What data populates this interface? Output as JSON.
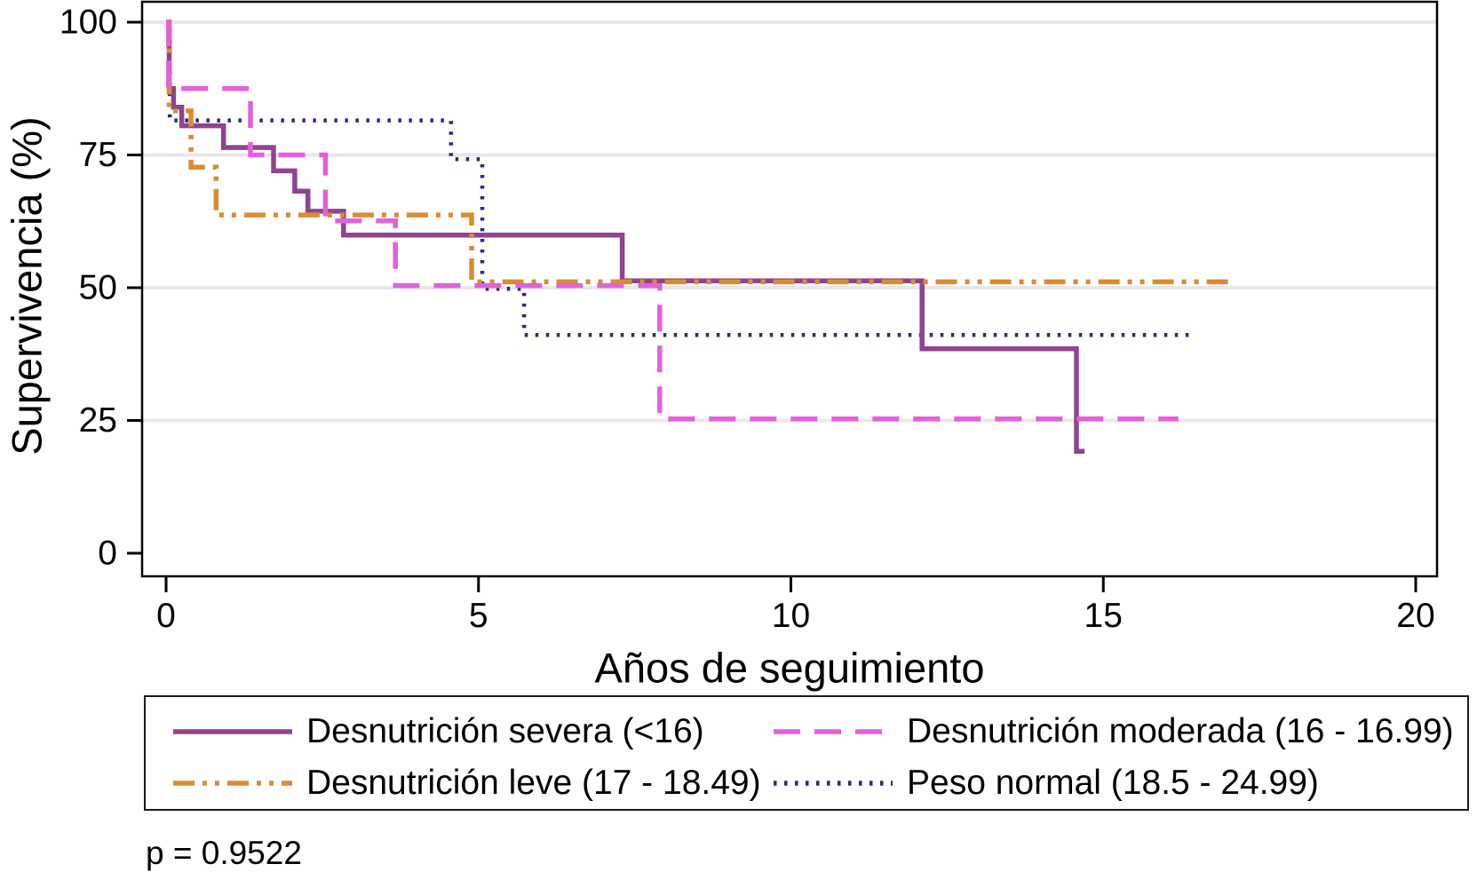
{
  "chart_data": {
    "type": "line",
    "subtype": "kaplan-meier-step-survival",
    "title": "",
    "xlabel": "Años de seguimiento",
    "ylabel": "Supervivencia (%)",
    "xlim": [
      0,
      20
    ],
    "ylim": [
      0,
      100
    ],
    "xticks": [
      0,
      5,
      10,
      15,
      20
    ],
    "yticks": [
      0,
      25,
      50,
      75,
      100
    ],
    "grid": "horizontal gridlines at 25, 50, 75, 100",
    "legend_position": "bottom boxed, 2 columns x 2 rows",
    "annotation": "p = 0.9522",
    "colors": {
      "severa": "#8F4391",
      "moderada": "#E361DB",
      "leve": "#DC8C30",
      "normal": "#2A2A85",
      "gridline": "#E8E8E8",
      "axis": "#000000"
    },
    "series": [
      {
        "name": "Desnutrición severa (<16)",
        "color": "#8F4391",
        "pattern": "solid",
        "width": 5.5,
        "steps": [
          [
            0,
            100
          ],
          [
            0.05,
            87.5
          ],
          [
            0.12,
            84
          ],
          [
            0.25,
            80.5
          ],
          [
            0.92,
            76.4
          ],
          [
            1.72,
            72
          ],
          [
            2.06,
            68.2
          ],
          [
            2.27,
            64.4
          ],
          [
            2.84,
            59.9
          ],
          [
            7.3,
            51.3
          ],
          [
            12.1,
            38.5
          ],
          [
            14.57,
            19.2
          ]
        ],
        "end_t": 14.7
      },
      {
        "name": "Desnutrición moderada (16 - 16.99)",
        "color": "#E361DB",
        "pattern": "dash",
        "width": 5.5,
        "steps": [
          [
            0,
            100
          ],
          [
            0.04,
            87.5
          ],
          [
            1.35,
            75
          ],
          [
            2.55,
            62.6
          ],
          [
            3.67,
            50.4
          ],
          [
            7.9,
            25.3
          ]
        ],
        "end_t": 16.2
      },
      {
        "name": "Desnutrición leve (17 - 18.49)",
        "color": "#DC8C30",
        "pattern": "dashdot",
        "width": 5.5,
        "steps": [
          [
            0,
            100
          ],
          [
            0.05,
            83.3
          ],
          [
            0.4,
            72.7
          ],
          [
            0.8,
            63.7
          ],
          [
            4.89,
            51.1
          ]
        ],
        "end_t": 17.0
      },
      {
        "name": "Peso normal (18.5 - 24.99)",
        "color": "#2A2A85",
        "pattern": "dot",
        "width": 4.5,
        "steps": [
          [
            0,
            100
          ],
          [
            0.06,
            81.5
          ],
          [
            4.56,
            74.2
          ],
          [
            5.06,
            49.8
          ],
          [
            5.73,
            41.1
          ]
        ],
        "end_t": 16.4
      }
    ]
  }
}
